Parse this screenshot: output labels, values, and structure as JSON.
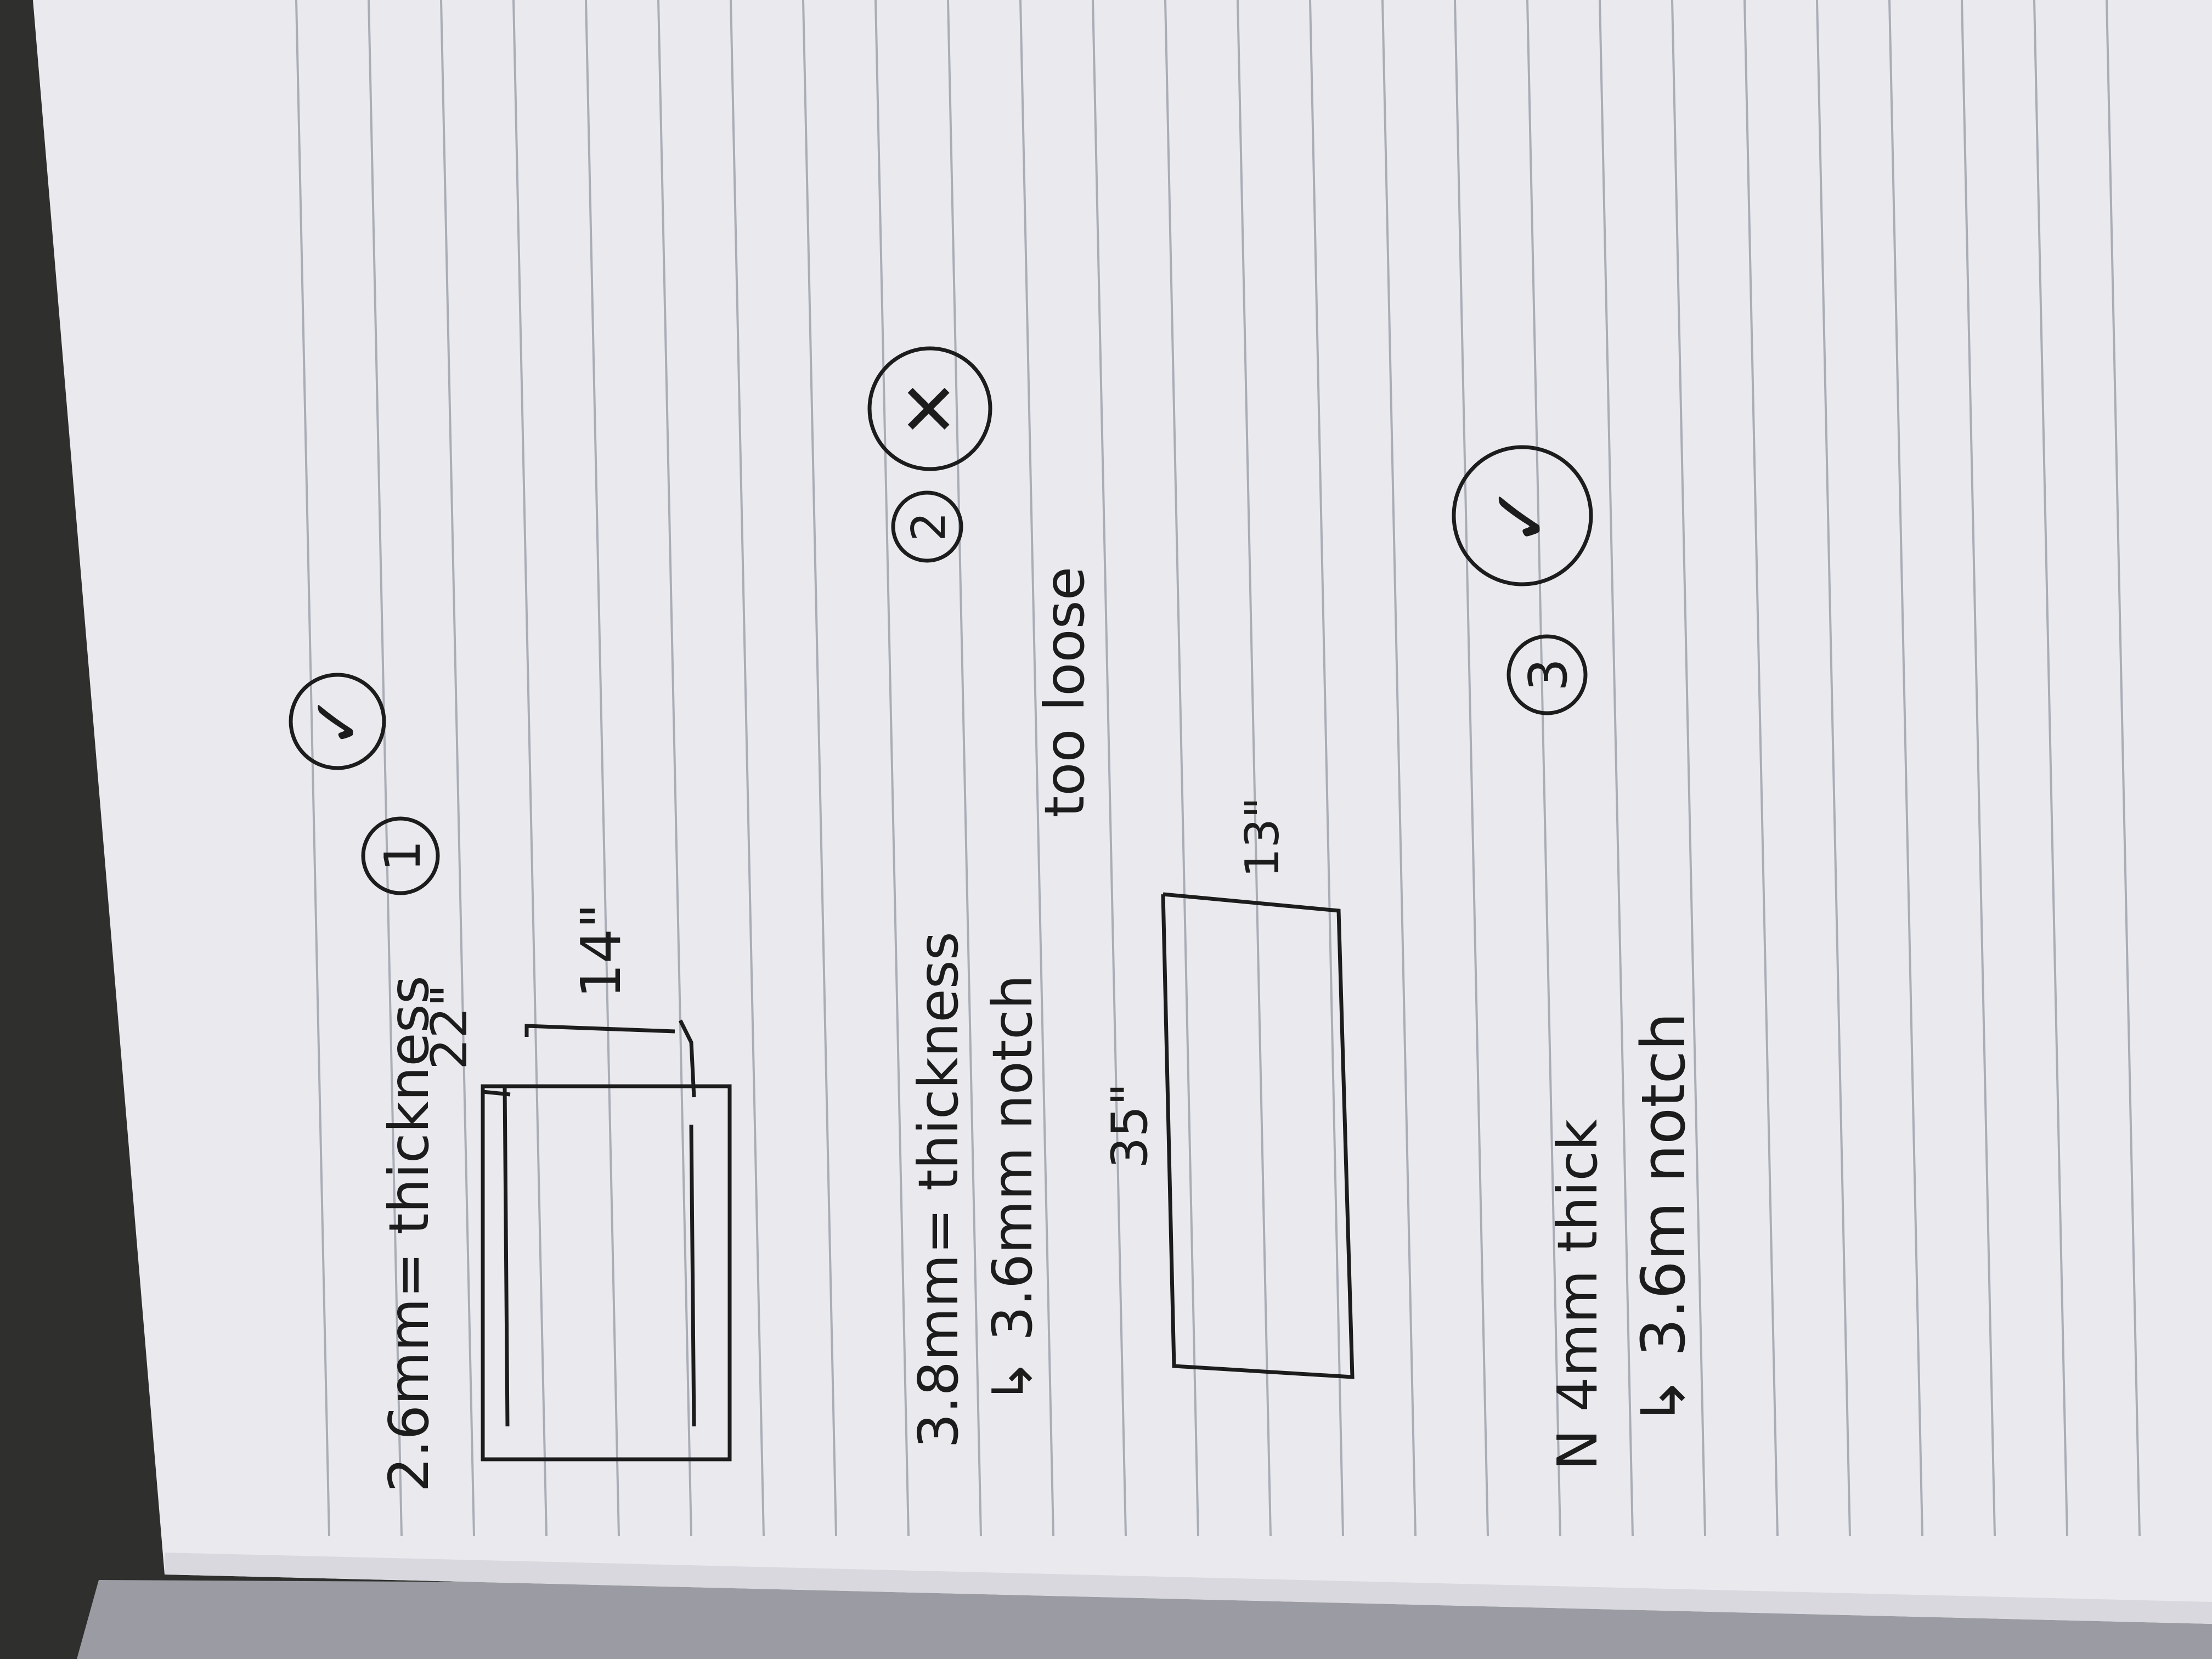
{
  "colors": {
    "desk": "#2f302e",
    "paper": "#e9e9ee",
    "paper_shadow": "#d8d8de",
    "rule_line": "#a9adb6",
    "ink": "#1c1c1c",
    "cover": "#9b9ba3"
  },
  "icons": [
    "circled-number-1",
    "check-mark-circle",
    "circled-number-2",
    "x-mark-circle",
    "circled-number-3",
    "check-mark-circle"
  ],
  "notes": {
    "entry1": {
      "number": "1",
      "line": "2.6mm= thickness",
      "dim_width": "22\"",
      "dim_height": "14\"",
      "result": "✓"
    },
    "entry2": {
      "number": "2",
      "line1": "3.8mm= thickness",
      "line2": "↳ 3.6mm notch",
      "dim_width": "35\"",
      "dim_height": "13\"",
      "comment": "too loose",
      "result": "✕"
    },
    "entry3": {
      "number": "3",
      "line1": "N 4mm thick",
      "line2": "↳ 3.6m notch",
      "result": "✓"
    }
  }
}
